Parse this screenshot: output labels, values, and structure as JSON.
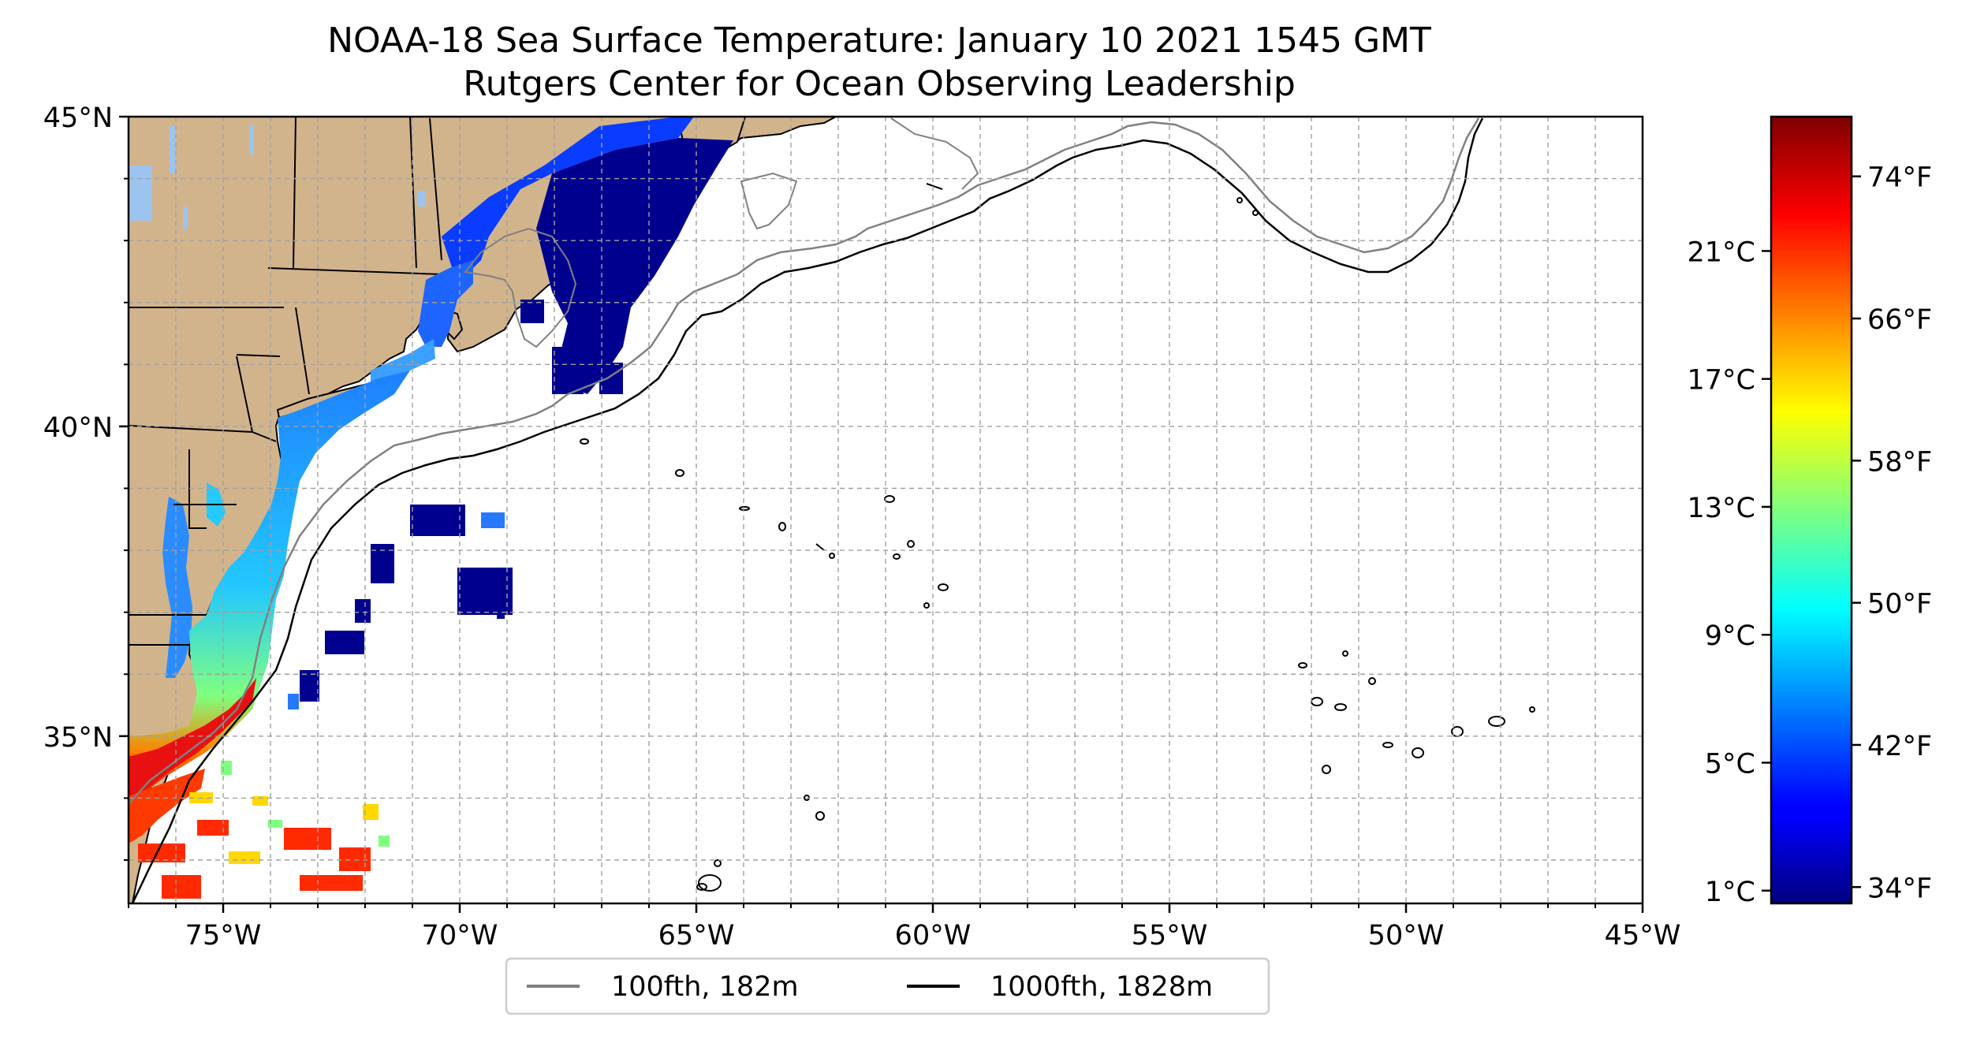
{
  "title_line1": "NOAA-18 Sea Surface Temperature: January 10 2021 1545 GMT",
  "title_line2": "Rutgers Center for Ocean Observing Leadership",
  "map": {
    "lon_range": [
      -77,
      -45
    ],
    "lat_range": [
      32.3,
      45
    ],
    "lat_ticks": [
      {
        "lat": 45,
        "label": "45°N"
      },
      {
        "lat": 40,
        "label": "40°N"
      },
      {
        "lat": 35,
        "label": "35°N"
      }
    ],
    "lon_ticks": [
      {
        "lon": -75,
        "label": "75°W"
      },
      {
        "lon": -70,
        "label": "70°W"
      },
      {
        "lon": -65,
        "label": "65°W"
      },
      {
        "lon": -60,
        "label": "60°W"
      },
      {
        "lon": -55,
        "label": "55°W"
      },
      {
        "lon": -50,
        "label": "50°W"
      },
      {
        "lon": -45,
        "label": "45°W"
      }
    ],
    "land_color": "#d2b48c",
    "gridlines": true
  },
  "legend": {
    "items": [
      {
        "label": "100fth, 182m",
        "color": "#808080"
      },
      {
        "label": "1000fth, 1828m",
        "color": "#000000"
      }
    ],
    "placement": "bottom-center"
  },
  "colorbar": {
    "colormap": "jet",
    "range_c": [
      0.6,
      25.2
    ],
    "celsius_ticks": [
      {
        "value": 1,
        "label": "1°C"
      },
      {
        "value": 5,
        "label": "5°C"
      },
      {
        "value": 9,
        "label": "9°C"
      },
      {
        "value": 13,
        "label": "13°C"
      },
      {
        "value": 17,
        "label": "17°C"
      },
      {
        "value": 21,
        "label": "21°C"
      }
    ],
    "fahrenheit_ticks": [
      {
        "value_f": 34,
        "label": "34°F"
      },
      {
        "value_f": 42,
        "label": "42°F"
      },
      {
        "value_f": 50,
        "label": "50°F"
      },
      {
        "value_f": 58,
        "label": "58°F"
      },
      {
        "value_f": 66,
        "label": "66°F"
      },
      {
        "value_f": 74,
        "label": "74°F"
      }
    ]
  }
}
